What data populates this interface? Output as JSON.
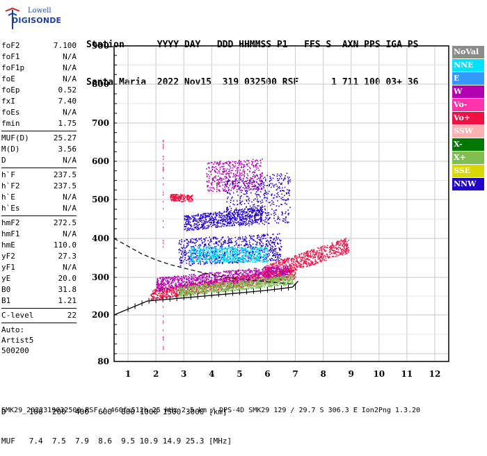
{
  "logo": {
    "line1": "Lowell",
    "line2": "DIGISONDE"
  },
  "header": {
    "row1": "Station      YYYY DAY   DDD HHMMSS P1   FFS S  AXN PPS IGA PS",
    "row2": "Santa Maria  2022 Nov15  319 032500 RSF      1 711 100 03+ 36"
  },
  "params": {
    "group1": [
      {
        "name": "foF2",
        "value": "7.100"
      },
      {
        "name": "foF1",
        "value": "N/A"
      },
      {
        "name": "foF1p",
        "value": "N/A"
      },
      {
        "name": "foE",
        "value": "N/A"
      },
      {
        "name": "foEp",
        "value": "0.52"
      },
      {
        "name": "fxI",
        "value": "7.40"
      },
      {
        "name": "foEs",
        "value": "N/A"
      },
      {
        "name": "fmin",
        "value": "1.75"
      }
    ],
    "group2": [
      {
        "name": "MUF(D)",
        "value": "25.27"
      },
      {
        "name": "M(D)",
        "value": "3.56"
      },
      {
        "name": "D",
        "value": "N/A"
      }
    ],
    "group3": [
      {
        "name": "h`F",
        "value": "237.5"
      },
      {
        "name": "h`F2",
        "value": "237.5"
      },
      {
        "name": "h`E",
        "value": "N/A"
      },
      {
        "name": "h`Es",
        "value": "N/A"
      }
    ],
    "group4": [
      {
        "name": "hmF2",
        "value": "272.5"
      },
      {
        "name": "hmF1",
        "value": "N/A"
      },
      {
        "name": "hmE",
        "value": "110.0"
      },
      {
        "name": "yF2",
        "value": "27.3"
      },
      {
        "name": "yF1",
        "value": "N/A"
      },
      {
        "name": "yE",
        "value": "20.0"
      },
      {
        "name": "B0",
        "value": "31.8"
      },
      {
        "name": "B1",
        "value": "1.21"
      }
    ],
    "group5": [
      {
        "name": "C-level",
        "value": "22"
      }
    ],
    "auto_label": "Auto:",
    "auto_name": "Artist5",
    "auto_version": "500200"
  },
  "legend": [
    {
      "label": "NoVal",
      "color": "#8c8c8c",
      "text": "#ffffff"
    },
    {
      "label": "NNE",
      "color": "#00e0ff",
      "text": "#ffffff"
    },
    {
      "label": "E",
      "color": "#3399ff",
      "text": "#ffffff"
    },
    {
      "label": "W",
      "color": "#b000b0",
      "text": "#ffffff"
    },
    {
      "label": "Vo-",
      "color": "#ff33aa",
      "text": "#ffffff"
    },
    {
      "label": "Vo+",
      "color": "#ee1144",
      "text": "#ffffff"
    },
    {
      "label": "SSW",
      "color": "#ffb0b0",
      "text": "#ffffff"
    },
    {
      "label": "X-",
      "color": "#007700",
      "text": "#ffffff"
    },
    {
      "label": "X+",
      "color": "#7fbf50",
      "text": "#ffffff"
    },
    {
      "label": "SSE",
      "color": "#d8d800",
      "text": "#ffffff"
    },
    {
      "label": "NNW",
      "color": "#2200cc",
      "text": "#ffffff"
    }
  ],
  "bottom": {
    "row1": "D     100  200  400  600  800 1000 1500 3000 [km]",
    "row2": "MUF   7.4  7.5  7.9  8.6  9.5 10.9 14.9 25.3 [MHz]"
  },
  "footer": "SMK29_2022319032500.RSF / 460fx512h 25 kHz 2.5 km / DPS-4D SMK29 129 / 29.7 S 306.3 E Ion2Png 1.3.20",
  "chart_data": {
    "type": "scatter",
    "xlim": [
      0.5,
      12.5
    ],
    "ylim": [
      80,
      900
    ],
    "x_ticks": [
      "1",
      "2",
      "3",
      "4",
      "5",
      "6",
      "7",
      "8",
      "9",
      "10",
      "11",
      "12"
    ],
    "y_ticks": [
      "80",
      "200",
      "300",
      "400",
      "500",
      "600",
      "700",
      "800",
      "900"
    ],
    "grid": true,
    "trace_virtual_height": [
      [
        1.7,
        237
      ],
      [
        2.2,
        240
      ],
      [
        2.8,
        244
      ],
      [
        3.4,
        248
      ],
      [
        4.0,
        252
      ],
      [
        4.6,
        256
      ],
      [
        5.2,
        260
      ],
      [
        5.8,
        264
      ],
      [
        6.4,
        269
      ],
      [
        6.9,
        274
      ]
    ],
    "profile_dashed": [
      [
        0.5,
        400
      ],
      [
        1.0,
        380
      ],
      [
        1.5,
        360
      ],
      [
        2.0,
        345
      ],
      [
        2.5,
        333
      ],
      [
        3.0,
        324
      ],
      [
        3.5,
        315
      ],
      [
        4.0,
        307
      ],
      [
        4.5,
        300
      ],
      [
        5.0,
        296
      ],
      [
        5.5,
        292
      ],
      [
        6.0,
        288
      ],
      [
        6.5,
        285
      ],
      [
        7.0,
        281
      ]
    ],
    "echo_bands": [
      {
        "x0": 1.8,
        "x1": 7.0,
        "y0": 240,
        "y1": 270,
        "slope": 0.55,
        "color": "#ee1144"
      },
      {
        "x0": 5.8,
        "x1": 8.9,
        "y0": 290,
        "y1": 330,
        "slope": 1.2,
        "color": "#ee1144"
      },
      {
        "x0": 2.0,
        "x1": 6.8,
        "y0": 265,
        "y1": 300,
        "slope": 0.35,
        "color": "#b000b0"
      },
      {
        "x0": 2.8,
        "x1": 6.5,
        "y0": 330,
        "y1": 400,
        "slope": 0.2,
        "color": "#2200cc"
      },
      {
        "x0": 3.0,
        "x1": 5.8,
        "y0": 420,
        "y1": 460,
        "slope": 0.4,
        "color": "#2200cc"
      },
      {
        "x0": 4.5,
        "x1": 6.8,
        "y0": 430,
        "y1": 560,
        "slope": 0.25,
        "color": "#2200cc"
      },
      {
        "x0": 2.5,
        "x1": 3.3,
        "y0": 495,
        "y1": 515,
        "slope": 0.0,
        "color": "#ee1144"
      },
      {
        "x0": 3.8,
        "x1": 5.8,
        "y0": 520,
        "y1": 600,
        "slope": 0.2,
        "color": "#b000b0"
      },
      {
        "x0": 3.2,
        "x1": 6.0,
        "y0": 340,
        "y1": 380,
        "slope": 0.0,
        "color": "#00e0ff"
      },
      {
        "x0": 2.8,
        "x1": 6.9,
        "y0": 250,
        "y1": 275,
        "slope": 0.4,
        "color": "#7fbf50"
      }
    ]
  }
}
